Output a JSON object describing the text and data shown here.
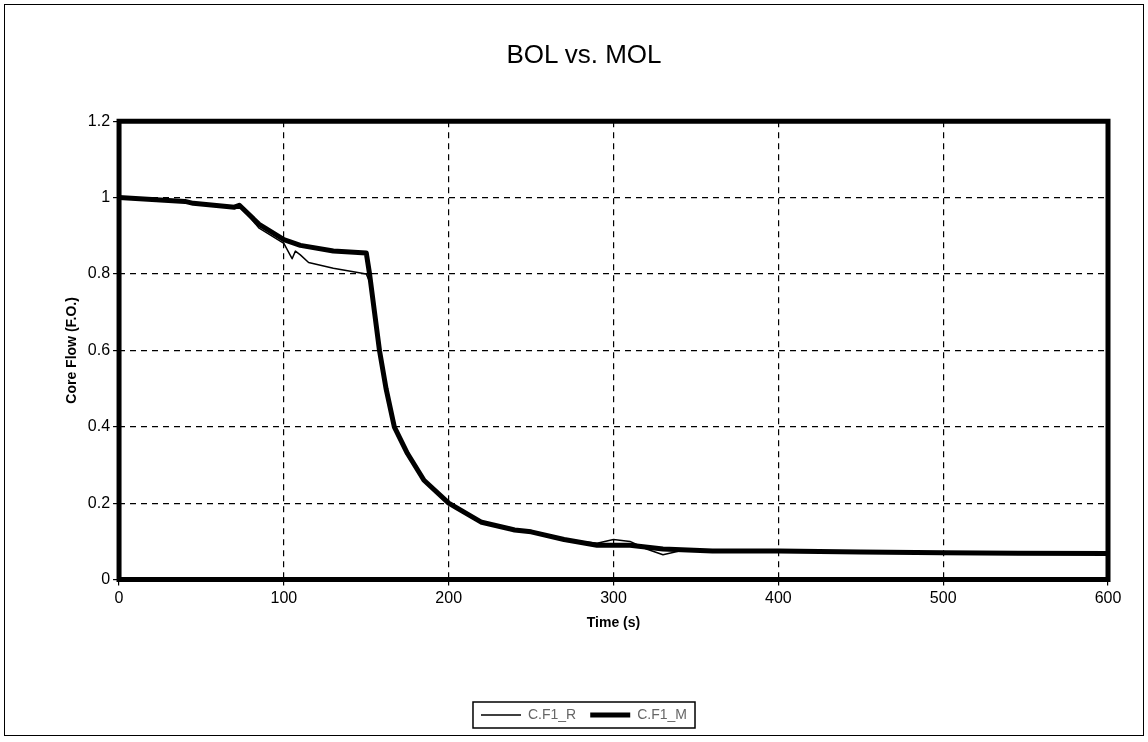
{
  "chart_data": {
    "type": "line",
    "title": "BOL vs. MOL",
    "xlabel": "Time (s)",
    "ylabel": "Core Flow (F.O.)",
    "xlim": [
      0,
      600
    ],
    "xticks": [
      0,
      100,
      200,
      300,
      400,
      500,
      600
    ],
    "ylim": [
      0,
      1.2
    ],
    "yticks": [
      0,
      0.2,
      0.4,
      0.6,
      0.8,
      1,
      1.2
    ],
    "grid": true,
    "legend": "bottom",
    "marker": "none",
    "line_style": "solid",
    "series": [
      {
        "name": "C.F1_R",
        "color": "#000000",
        "x": [
          0,
          40,
          45,
          70,
          73,
          85,
          100,
          105,
          107,
          110,
          115,
          130,
          150,
          152,
          155,
          158,
          162,
          167,
          175,
          185,
          200,
          220,
          240,
          250,
          270,
          290,
          300,
          310,
          320,
          330,
          340,
          360,
          400,
          450,
          500,
          600
        ],
        "values": [
          1.0,
          0.99,
          0.985,
          0.975,
          0.98,
          0.92,
          0.88,
          0.84,
          0.86,
          0.85,
          0.83,
          0.815,
          0.8,
          0.78,
          0.7,
          0.6,
          0.5,
          0.4,
          0.33,
          0.26,
          0.2,
          0.15,
          0.13,
          0.125,
          0.105,
          0.095,
          0.105,
          0.1,
          0.08,
          0.065,
          0.075,
          0.075,
          0.075,
          0.072,
          0.07,
          0.068
        ]
      },
      {
        "name": "C.F1_M",
        "color": "#000000",
        "x": [
          0,
          40,
          45,
          70,
          73,
          85,
          100,
          110,
          130,
          150,
          152,
          155,
          158,
          162,
          167,
          175,
          185,
          200,
          220,
          240,
          250,
          270,
          290,
          310,
          330,
          360,
          400,
          450,
          500,
          600
        ],
        "values": [
          1.0,
          0.99,
          0.985,
          0.975,
          0.98,
          0.93,
          0.89,
          0.875,
          0.86,
          0.855,
          0.8,
          0.7,
          0.6,
          0.5,
          0.4,
          0.33,
          0.26,
          0.2,
          0.15,
          0.13,
          0.125,
          0.105,
          0.09,
          0.09,
          0.08,
          0.075,
          0.075,
          0.072,
          0.07,
          0.068
        ]
      }
    ]
  }
}
